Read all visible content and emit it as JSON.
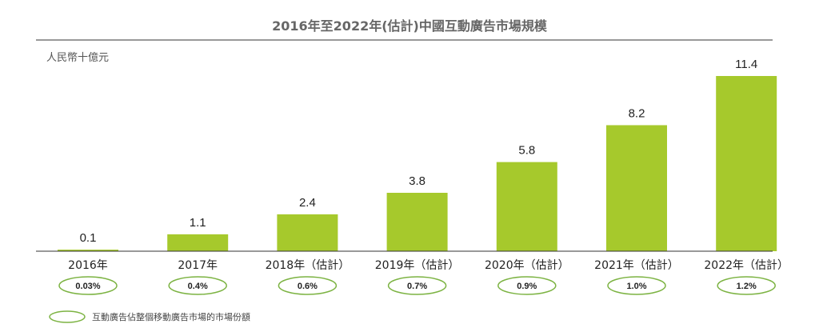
{
  "colors": {
    "bar": "#a6c92c",
    "ellipse": "#7cb342",
    "rule": "#999999",
    "axis": "#333333"
  },
  "chart_data": {
    "type": "bar",
    "title": "2016年至2022年(估計)中國互動廣告市場規模",
    "ylabel": "人民幣十億元",
    "categories": [
      "2016年",
      "2017年",
      "2018年（估計）",
      "2019年（估計）",
      "2020年（估計）",
      "2021年（估計）",
      "2022年（估計）"
    ],
    "values": [
      0.1,
      1.1,
      2.4,
      3.8,
      5.8,
      8.2,
      11.4
    ],
    "value_labels": [
      "0.1",
      "1.1",
      "2.4",
      "3.8",
      "5.8",
      "8.2",
      "11.4"
    ],
    "ylim": [
      0,
      12
    ],
    "grid": false,
    "market_share": [
      "0.03%",
      "0.4%",
      "0.6%",
      "0.7%",
      "0.9%",
      "1.0%",
      "1.2%"
    ],
    "legend": "互動廣告佔整個移動廣告市場的市場份額",
    "legend_placement": "bottom-left"
  }
}
